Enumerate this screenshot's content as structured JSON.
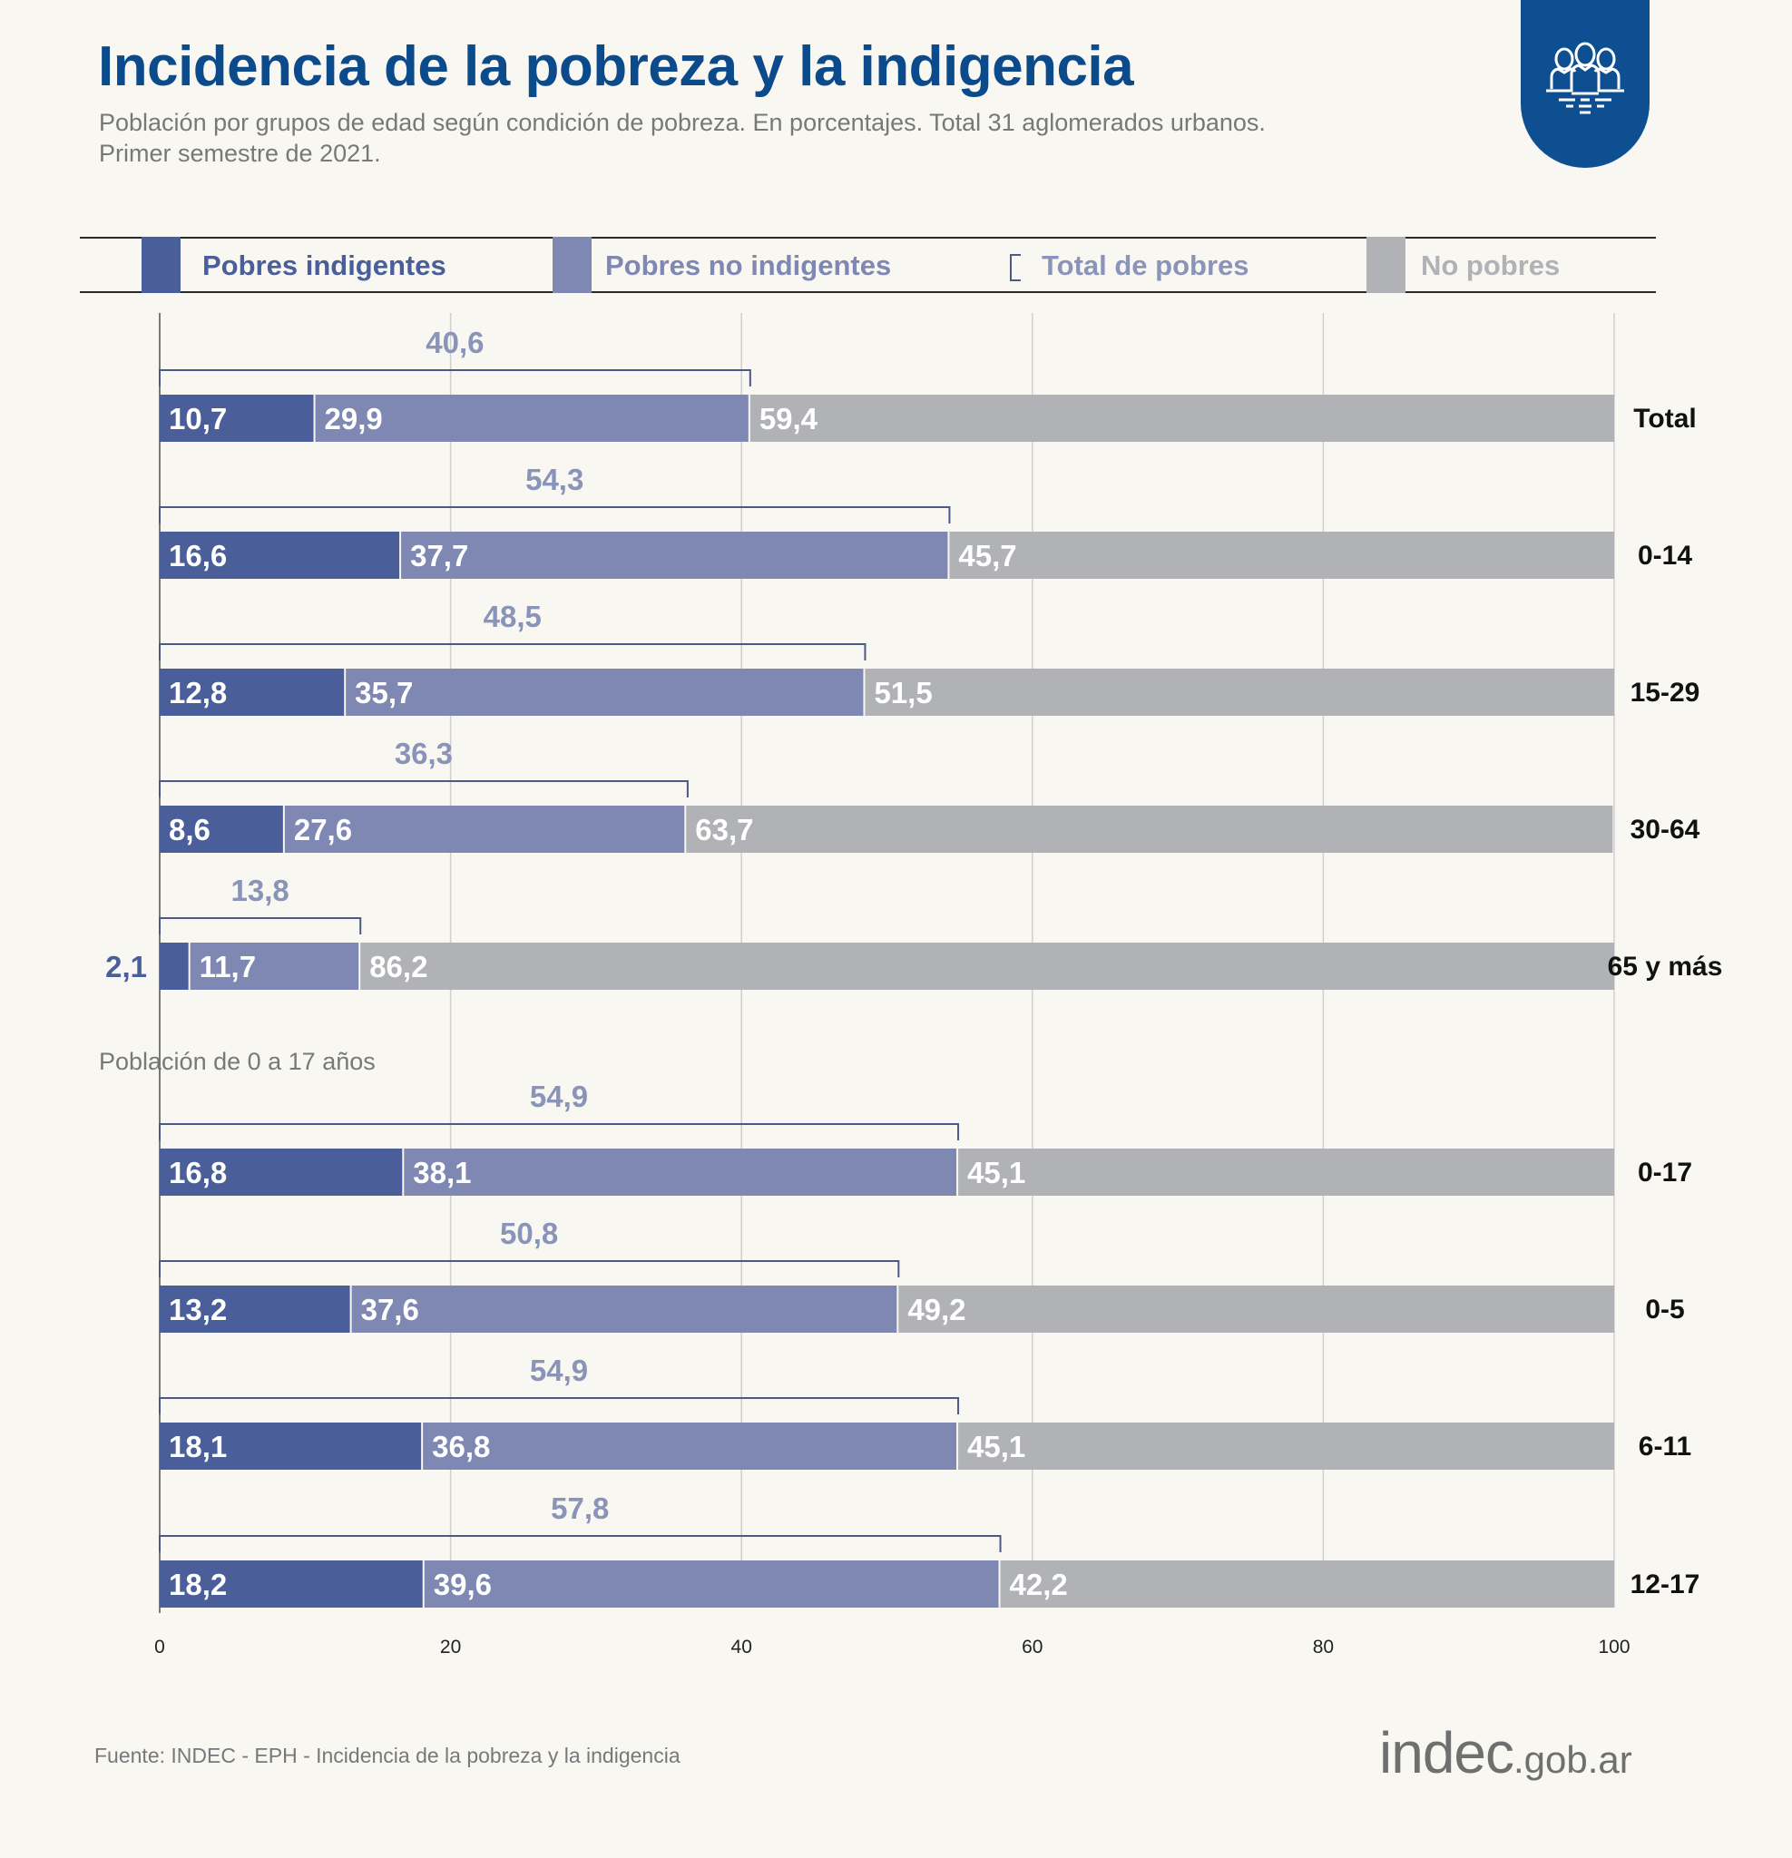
{
  "header": {
    "title": "Incidencia de la pobreza y la indigencia",
    "subtitle_line1": "Población por grupos de edad según condición de pobreza. En porcentajes. Total 31 aglomerados urbanos.",
    "subtitle_line2": "Primer semestre de 2021.",
    "badge_icon": "people-group-icon"
  },
  "legend": {
    "items": [
      {
        "label": "Pobres indigentes",
        "color": "#4a5f9a"
      },
      {
        "label": "Pobres no indigentes",
        "color": "#7e88b3"
      },
      {
        "label": "Total de pobres",
        "color": "#8a94b8"
      },
      {
        "label": "No pobres",
        "color": "#b1b2b5"
      }
    ]
  },
  "section_label": "Población de 0 a 17 años",
  "footer": {
    "source": "Fuente: INDEC - EPH - Incidencia de la pobreza y la indigencia",
    "logo_main": "indec",
    "logo_suffix": ".gob.ar"
  },
  "chart_data": {
    "type": "bar",
    "orientation": "horizontal",
    "stacked": true,
    "title": "Incidencia de la pobreza y la indigencia",
    "xlim": [
      0,
      100
    ],
    "xticks": [
      "0",
      "20",
      "40",
      "60",
      "80",
      "100"
    ],
    "grid": true,
    "legend_position": "top",
    "categories": [
      "Total",
      "0-14",
      "15-29",
      "30-64",
      "65 y más",
      "0-17",
      "0-5",
      "6-11",
      "12-17"
    ],
    "series": [
      {
        "name": "Pobres indigentes",
        "color": "#4a5f9a",
        "values": [
          10.7,
          16.6,
          12.8,
          8.6,
          2.1,
          16.8,
          13.2,
          18.1,
          18.2
        ],
        "labels": [
          "10,7",
          "16,6",
          "12,8",
          "8,6",
          "2,1",
          "16,8",
          "13,2",
          "18,1",
          "18,2"
        ]
      },
      {
        "name": "Pobres no indigentes",
        "color": "#7e88b3",
        "values": [
          29.9,
          37.7,
          35.7,
          27.6,
          11.7,
          38.1,
          37.6,
          36.8,
          39.6
        ],
        "labels": [
          "29,9",
          "37,7",
          "35,7",
          "27,6",
          "11,7",
          "38,1",
          "37,6",
          "36,8",
          "39,6"
        ]
      },
      {
        "name": "No pobres",
        "color": "#b1b2b5",
        "values": [
          59.4,
          45.7,
          51.5,
          63.7,
          86.2,
          45.1,
          49.2,
          45.1,
          42.2
        ],
        "labels": [
          "59,4",
          "45,7",
          "51,5",
          "63,7",
          "86,2",
          "45,1",
          "49,2",
          "45,1",
          "42,2"
        ]
      }
    ],
    "totals": {
      "name": "Total de pobres",
      "values": [
        40.6,
        54.3,
        48.5,
        36.3,
        13.8,
        54.9,
        50.8,
        54.9,
        57.8
      ],
      "labels": [
        "40,6",
        "54,3",
        "48,5",
        "36,3",
        "13,8",
        "54,9",
        "50,8",
        "54,9",
        "57,8"
      ]
    }
  }
}
